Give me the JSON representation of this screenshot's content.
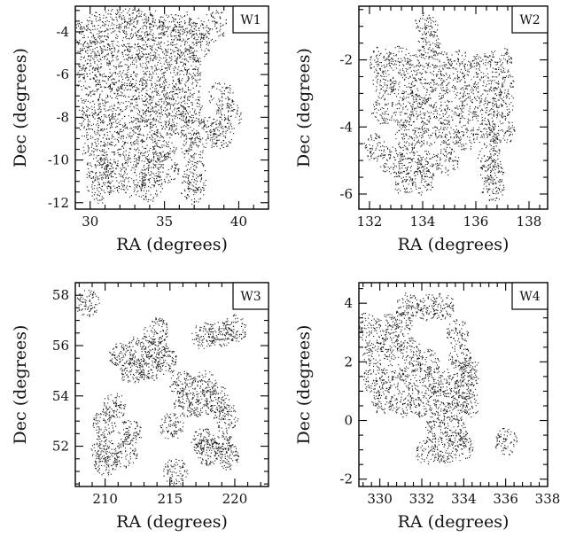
{
  "chart_data": [
    {
      "type": "scatter",
      "panel_label": "W1",
      "xlabel": "RA (degrees)",
      "ylabel": "Dec (degrees)",
      "xlim": [
        29,
        42
      ],
      "ylim": [
        -12.3,
        -2.8
      ],
      "xticks": [
        30,
        35,
        40
      ],
      "yticks": [
        -12,
        -10,
        -8,
        -6,
        -4
      ],
      "point_color": "#111111",
      "pointings": [
        [
          29.6,
          -4.2
        ],
        [
          30.5,
          -3.8
        ],
        [
          31.6,
          -3.6
        ],
        [
          32.6,
          -3.6
        ],
        [
          33.5,
          -3.6
        ],
        [
          34.4,
          -3.7
        ],
        [
          35.3,
          -3.9
        ],
        [
          36.2,
          -3.7
        ],
        [
          36.9,
          -4.0
        ],
        [
          38.4,
          -3.7
        ],
        [
          29.8,
          -5.1
        ],
        [
          30.8,
          -4.9
        ],
        [
          31.9,
          -5.0
        ],
        [
          32.9,
          -4.7
        ],
        [
          33.8,
          -4.8
        ],
        [
          34.7,
          -5.2
        ],
        [
          35.8,
          -5.0
        ],
        [
          36.6,
          -5.4
        ],
        [
          37.2,
          -4.7
        ],
        [
          29.9,
          -6.2
        ],
        [
          31.0,
          -6.1
        ],
        [
          32.0,
          -6.3
        ],
        [
          33.2,
          -6.0
        ],
        [
          34.2,
          -6.3
        ],
        [
          35.3,
          -6.4
        ],
        [
          36.7,
          -6.3
        ],
        [
          30.0,
          -7.3
        ],
        [
          31.2,
          -7.6
        ],
        [
          32.4,
          -7.1
        ],
        [
          33.5,
          -7.5
        ],
        [
          34.6,
          -7.3
        ],
        [
          35.7,
          -7.2
        ],
        [
          36.8,
          -7.6
        ],
        [
          38.8,
          -7.0
        ],
        [
          39.3,
          -7.9
        ],
        [
          30.1,
          -8.4
        ],
        [
          31.3,
          -8.6
        ],
        [
          32.6,
          -8.6
        ],
        [
          33.6,
          -8.4
        ],
        [
          34.8,
          -8.2
        ],
        [
          35.9,
          -8.2
        ],
        [
          36.9,
          -8.5
        ],
        [
          37.9,
          -8.7
        ],
        [
          38.8,
          -8.7
        ],
        [
          30.3,
          -9.6
        ],
        [
          31.5,
          -9.8
        ],
        [
          32.7,
          -9.7
        ],
        [
          33.9,
          -9.6
        ],
        [
          35.0,
          -9.4
        ],
        [
          36.9,
          -9.4
        ],
        [
          30.5,
          -10.6
        ],
        [
          31.6,
          -10.8
        ],
        [
          34.2,
          -10.5
        ],
        [
          35.1,
          -10.4
        ],
        [
          37.0,
          -10.7
        ],
        [
          30.6,
          -11.3
        ],
        [
          32.9,
          -11.0
        ],
        [
          34.0,
          -11.2
        ],
        [
          36.9,
          -11.3
        ]
      ]
    },
    {
      "type": "scatter",
      "panel_label": "W2",
      "xlabel": "RA (degrees)",
      "ylabel": "Dec (degrees)",
      "xlim": [
        131.6,
        138.7
      ],
      "ylim": [
        -6.45,
        -0.4
      ],
      "xticks": [
        132,
        134,
        136,
        138
      ],
      "yticks": [
        -6,
        -4,
        -2
      ],
      "point_color": "#111111",
      "pointings": [
        [
          134.1,
          -1.0
        ],
        [
          134.2,
          -1.5
        ],
        [
          132.4,
          -2.0
        ],
        [
          133.1,
          -2.0
        ],
        [
          133.8,
          -2.2
        ],
        [
          134.6,
          -2.1
        ],
        [
          135.4,
          -2.1
        ],
        [
          136.2,
          -2.2
        ],
        [
          136.9,
          -2.0
        ],
        [
          132.5,
          -2.7
        ],
        [
          133.2,
          -2.8
        ],
        [
          133.9,
          -2.9
        ],
        [
          134.7,
          -2.7
        ],
        [
          135.5,
          -2.8
        ],
        [
          136.3,
          -2.9
        ],
        [
          137.0,
          -2.7
        ],
        [
          132.5,
          -3.5
        ],
        [
          133.3,
          -3.6
        ],
        [
          134.0,
          -3.4
        ],
        [
          134.8,
          -3.5
        ],
        [
          135.6,
          -3.5
        ],
        [
          136.4,
          -3.6
        ],
        [
          137.0,
          -3.3
        ],
        [
          133.4,
          -4.3
        ],
        [
          134.1,
          -4.2
        ],
        [
          134.9,
          -4.2
        ],
        [
          135.6,
          -4.3
        ],
        [
          136.4,
          -4.2
        ],
        [
          137.0,
          -4.1
        ],
        [
          132.2,
          -4.6
        ],
        [
          132.8,
          -5.0
        ],
        [
          133.5,
          -5.0
        ],
        [
          134.2,
          -5.1
        ],
        [
          134.9,
          -5.0
        ],
        [
          136.5,
          -4.9
        ],
        [
          133.3,
          -5.6
        ],
        [
          134.0,
          -5.6
        ],
        [
          136.6,
          -5.3
        ],
        [
          136.6,
          -5.8
        ]
      ]
    },
    {
      "type": "scatter",
      "panel_label": "W3",
      "xlabel": "RA (degrees)",
      "ylabel": "Dec (degrees)",
      "xlim": [
        207.7,
        222.6
      ],
      "ylim": [
        50.4,
        58.5
      ],
      "xticks": [
        210,
        215,
        220
      ],
      "yticks": [
        52,
        54,
        56,
        58
      ],
      "point_color": "#111111",
      "pointings": [
        [
          208.6,
          57.7
        ],
        [
          213.9,
          56.6
        ],
        [
          217.6,
          56.4
        ],
        [
          218.9,
          56.5
        ],
        [
          220.0,
          56.7
        ],
        [
          211.2,
          55.6
        ],
        [
          212.6,
          55.9
        ],
        [
          214.0,
          55.8
        ],
        [
          212.0,
          55.0
        ],
        [
          213.3,
          55.1
        ],
        [
          214.6,
          55.4
        ],
        [
          215.9,
          54.5
        ],
        [
          217.6,
          54.5
        ],
        [
          210.7,
          53.6
        ],
        [
          216.2,
          53.7
        ],
        [
          217.4,
          53.7
        ],
        [
          218.6,
          53.9
        ],
        [
          219.3,
          53.2
        ],
        [
          209.9,
          52.9
        ],
        [
          211.9,
          52.6
        ],
        [
          215.1,
          52.8
        ],
        [
          217.5,
          52.2
        ],
        [
          218.9,
          52.1
        ],
        [
          209.8,
          51.9
        ],
        [
          211.5,
          51.7
        ],
        [
          217.9,
          51.8
        ],
        [
          219.4,
          51.6
        ],
        [
          210.0,
          51.4
        ],
        [
          215.4,
          51.0
        ]
      ]
    },
    {
      "type": "scatter",
      "panel_label": "W4",
      "xlabel": "RA (degrees)",
      "ylabel": "Dec (degrees)",
      "xlim": [
        329,
        338
      ],
      "ylim": [
        -2.25,
        4.7
      ],
      "xticks": [
        330,
        332,
        334,
        336,
        338
      ],
      "yticks": [
        -2,
        0,
        2,
        4
      ],
      "point_color": "#111111",
      "pointings": [
        [
          331.3,
          3.9
        ],
        [
          332.2,
          3.9
        ],
        [
          333.0,
          3.9
        ],
        [
          329.3,
          3.2
        ],
        [
          330.3,
          3.2
        ],
        [
          331.0,
          3.3
        ],
        [
          333.7,
          3.0
        ],
        [
          329.7,
          2.3
        ],
        [
          330.5,
          2.5
        ],
        [
          331.4,
          2.4
        ],
        [
          332.3,
          2.0
        ],
        [
          333.8,
          2.2
        ],
        [
          334.3,
          1.7
        ],
        [
          329.7,
          1.4
        ],
        [
          330.6,
          1.5
        ],
        [
          331.5,
          1.5
        ],
        [
          332.5,
          1.4
        ],
        [
          333.3,
          1.3
        ],
        [
          334.1,
          1.2
        ],
        [
          330.1,
          0.7
        ],
        [
          331.0,
          0.6
        ],
        [
          331.9,
          0.6
        ],
        [
          332.8,
          0.6
        ],
        [
          333.6,
          0.4
        ],
        [
          334.2,
          0.6
        ],
        [
          332.7,
          -0.2
        ],
        [
          333.6,
          -0.4
        ],
        [
          332.2,
          -1.0
        ],
        [
          333.1,
          -1.0
        ],
        [
          333.9,
          -0.9
        ],
        [
          336.0,
          -0.7
        ]
      ]
    }
  ]
}
